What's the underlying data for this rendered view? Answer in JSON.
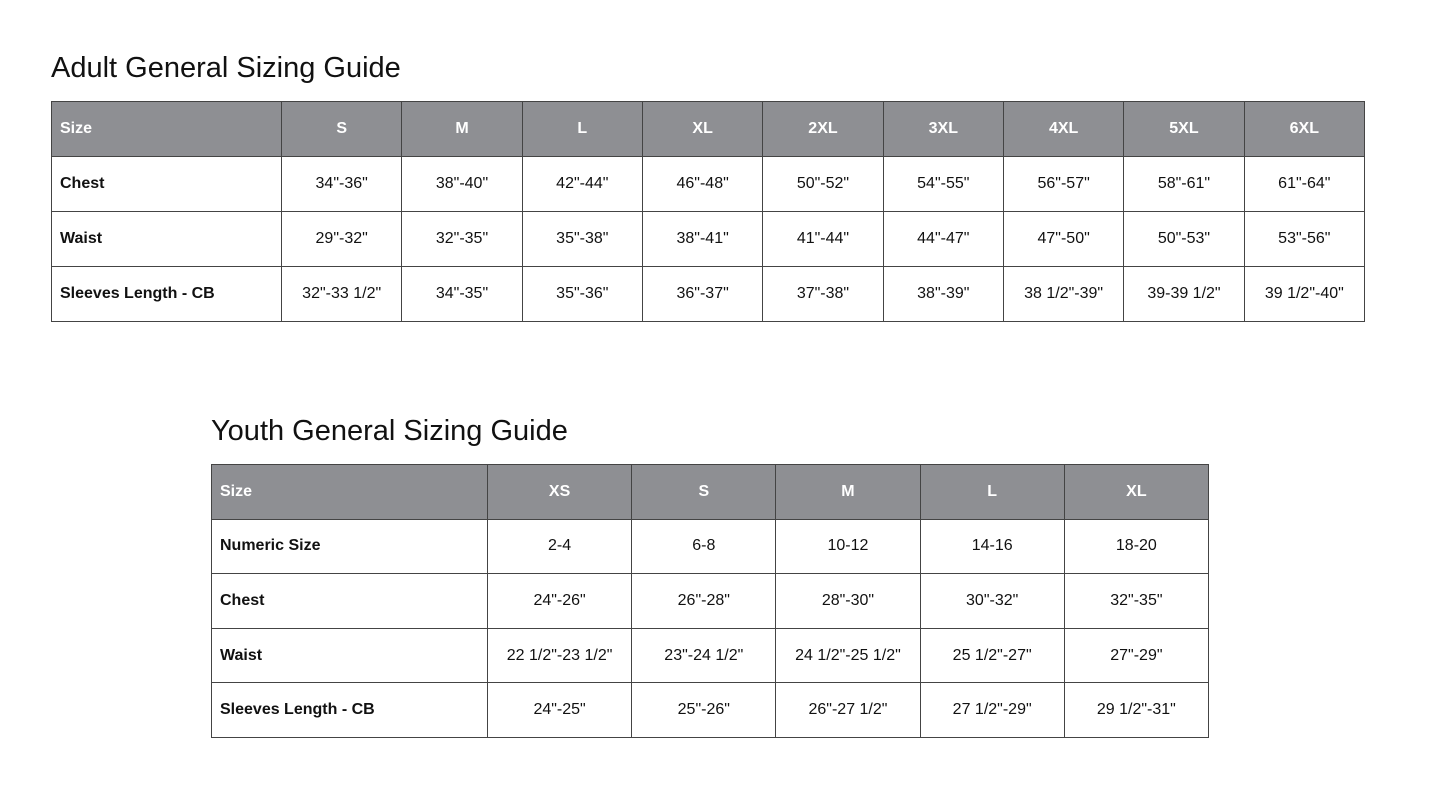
{
  "adult": {
    "title": "Adult General Sizing Guide",
    "headers": [
      "Size",
      "S",
      "M",
      "L",
      "XL",
      "2XL",
      "3XL",
      "4XL",
      "5XL",
      "6XL"
    ],
    "rows": [
      [
        "Chest",
        "34\"-36\"",
        "38\"-40\"",
        "42\"-44\"",
        "46\"-48\"",
        "50\"-52\"",
        "54\"-55\"",
        "56\"-57\"",
        "58\"-61\"",
        "61\"-64\""
      ],
      [
        "Waist",
        "29\"-32\"",
        "32\"-35\"",
        "35\"-38\"",
        "38\"-41\"",
        "41\"-44\"",
        "44\"-47\"",
        "47\"-50\"",
        "50\"-53\"",
        "53\"-56\""
      ],
      [
        "Sleeves Length - CB",
        "32\"-33 1/2\"",
        "34\"-35\"",
        "35\"-36\"",
        "36\"-37\"",
        "37\"-38\"",
        "38\"-39\"",
        "38 1/2\"-39\"",
        "39-39 1/2\"",
        "39 1/2\"-40\""
      ]
    ]
  },
  "youth": {
    "title": "Youth General Sizing Guide",
    "headers": [
      "Size",
      "XS",
      "S",
      "M",
      "L",
      "XL"
    ],
    "rows": [
      [
        "Numeric Size",
        "2-4",
        "6-8",
        "10-12",
        "14-16",
        "18-20"
      ],
      [
        "Chest",
        "24\"-26\"",
        "26\"-28\"",
        "28\"-30\"",
        "30\"-32\"",
        "32\"-35\""
      ],
      [
        "Waist",
        "22 1/2\"-23 1/2\"",
        "23\"-24 1/2\"",
        "24 1/2\"-25 1/2\"",
        "25 1/2\"-27\"",
        "27\"-29\""
      ],
      [
        "Sleeves Length - CB",
        "24\"-25\"",
        "25\"-26\"",
        "26\"-27 1/2\"",
        "27 1/2\"-29\"",
        "29 1/2\"-31\""
      ]
    ]
  },
  "colors": {
    "header_bg": "#8e8f93",
    "border": "#444444"
  }
}
